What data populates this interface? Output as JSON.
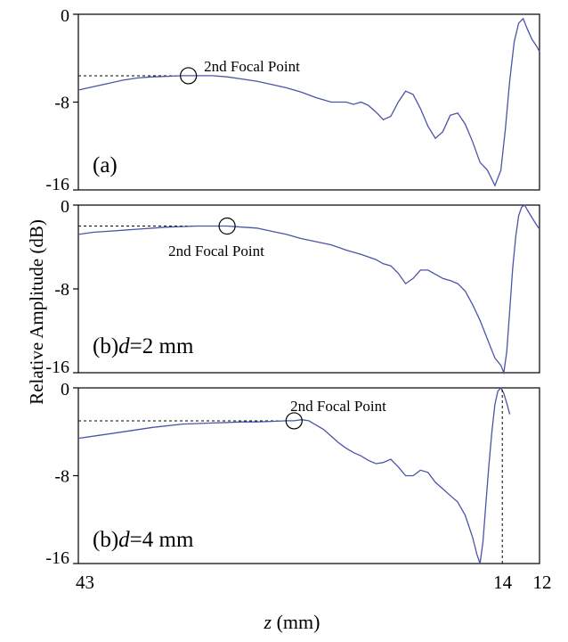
{
  "chart_data": [
    {
      "type": "line",
      "panel_label": "(a)",
      "annotation": "2nd Focal Point",
      "xlim": [
        43,
        12
      ],
      "ylim": [
        -16,
        0
      ],
      "yticks": [
        "0",
        "-8",
        "-16"
      ],
      "focal_point": {
        "x": 35.6,
        "y": -5.6
      },
      "series": [
        {
          "x": [
            43,
            42,
            41,
            40,
            39,
            38,
            37,
            36,
            35,
            34,
            33,
            32,
            31,
            30,
            29,
            28,
            27,
            26,
            25,
            24.5,
            24,
            23.5,
            23,
            22.5,
            22,
            21.5,
            21,
            20.5,
            20,
            19.5,
            19,
            18.5,
            18,
            17.5,
            17,
            16.5,
            16,
            15.5,
            15,
            14.6,
            14.3,
            14,
            13.7,
            13.4,
            13.1,
            12.8,
            12.5,
            12.2,
            12
          ],
          "y": [
            -6.9,
            -6.6,
            -6.3,
            -6.0,
            -5.8,
            -5.7,
            -5.65,
            -5.6,
            -5.6,
            -5.6,
            -5.7,
            -5.9,
            -6.1,
            -6.4,
            -6.7,
            -7.1,
            -7.6,
            -8.0,
            -8.0,
            -8.2,
            -8.0,
            -8.3,
            -8.9,
            -9.6,
            -9.3,
            -8.0,
            -7.0,
            -7.3,
            -8.6,
            -10.2,
            -11.3,
            -10.7,
            -9.2,
            -9.0,
            -10.0,
            -11.6,
            -13.5,
            -14.2,
            -15.6,
            -14.2,
            -10.5,
            -6.0,
            -2.5,
            -0.8,
            -0.4,
            -1.4,
            -2.3,
            -2.9,
            -3.4
          ]
        }
      ]
    },
    {
      "type": "line",
      "panel_label_prefix": "(b)",
      "panel_label_var": "d",
      "panel_label_suffix": "=2 mm",
      "annotation": "2nd Focal Point",
      "xlim": [
        43,
        12
      ],
      "ylim": [
        -16,
        0
      ],
      "yticks": [
        "0",
        "-8",
        "-16"
      ],
      "focal_point": {
        "x": 33.0,
        "y": -2.0
      },
      "series": [
        {
          "x": [
            43,
            42,
            41,
            40,
            39,
            38,
            37,
            36,
            35,
            34,
            33,
            32,
            31,
            30,
            29,
            28,
            27,
            26,
            25,
            24,
            23,
            22.5,
            22,
            21.5,
            21,
            20.5,
            20,
            19.5,
            19,
            18.5,
            18,
            17.5,
            17,
            16.5,
            16,
            15.5,
            15,
            14.6,
            14.4,
            14.2,
            14,
            13.8,
            13.6,
            13.4,
            13.2,
            13,
            12.8,
            12.5,
            12.2,
            12
          ],
          "y": [
            -2.8,
            -2.6,
            -2.5,
            -2.4,
            -2.3,
            -2.2,
            -2.1,
            -2.05,
            -2.0,
            -2.0,
            -2.0,
            -2.1,
            -2.2,
            -2.5,
            -2.8,
            -3.2,
            -3.5,
            -3.8,
            -4.3,
            -4.7,
            -5.2,
            -5.6,
            -5.8,
            -6.5,
            -7.5,
            -7.0,
            -6.2,
            -6.2,
            -6.6,
            -7.0,
            -7.2,
            -7.5,
            -8.2,
            -9.5,
            -11.0,
            -12.8,
            -14.6,
            -15.3,
            -16.0,
            -14.0,
            -10.0,
            -6.0,
            -3.0,
            -1.0,
            -0.2,
            0,
            -0.5,
            -1.2,
            -1.9,
            -2.3
          ]
        }
      ]
    },
    {
      "type": "line",
      "panel_label_prefix": "(b)",
      "panel_label_var": "d",
      "panel_label_suffix": "=4 mm",
      "annotation": "2nd Focal Point",
      "xlim": [
        43,
        12
      ],
      "ylim": [
        -16,
        0
      ],
      "yticks": [
        "0",
        "-8",
        "-16"
      ],
      "focal_point": {
        "x": 28.5,
        "y": -3.0
      },
      "xticks": [
        {
          "value": 43,
          "label": "43"
        },
        {
          "value": 14.3,
          "label": "14"
        },
        {
          "value": 12,
          "label": "12"
        }
      ],
      "marker_x": 14.5,
      "series": [
        {
          "x": [
            43,
            42,
            40,
            38,
            36,
            34,
            32,
            31,
            30,
            29,
            28.5,
            28,
            27.5,
            27,
            26.5,
            26,
            25.5,
            25,
            24.5,
            24,
            23.5,
            23,
            22.5,
            22,
            21.5,
            21,
            20.5,
            20,
            19.5,
            19,
            18.5,
            18,
            17.5,
            17,
            16.5,
            16.2,
            16,
            15.8,
            15.6,
            15.4,
            15.2,
            15,
            14.8,
            14.6,
            14.4,
            14.2,
            14
          ],
          "y": [
            -4.6,
            -4.4,
            -4.0,
            -3.6,
            -3.3,
            -3.2,
            -3.1,
            -3.1,
            -3.05,
            -3.0,
            -3.0,
            -2.9,
            -3.0,
            -3.4,
            -3.8,
            -4.4,
            -5.0,
            -5.5,
            -5.9,
            -6.2,
            -6.6,
            -6.9,
            -6.8,
            -6.5,
            -7.2,
            -8.0,
            -8.0,
            -7.5,
            -7.7,
            -8.6,
            -9.2,
            -9.8,
            -10.4,
            -11.6,
            -13.6,
            -15.2,
            -16.0,
            -14.0,
            -10.5,
            -7.0,
            -4.0,
            -1.5,
            -0.3,
            0,
            -0.5,
            -1.4,
            -2.4
          ]
        }
      ]
    }
  ],
  "axes": {
    "ylabel": "Relative Amplitude (dB)",
    "xlabel_var": "z",
    "xlabel_unit": " (mm)"
  }
}
